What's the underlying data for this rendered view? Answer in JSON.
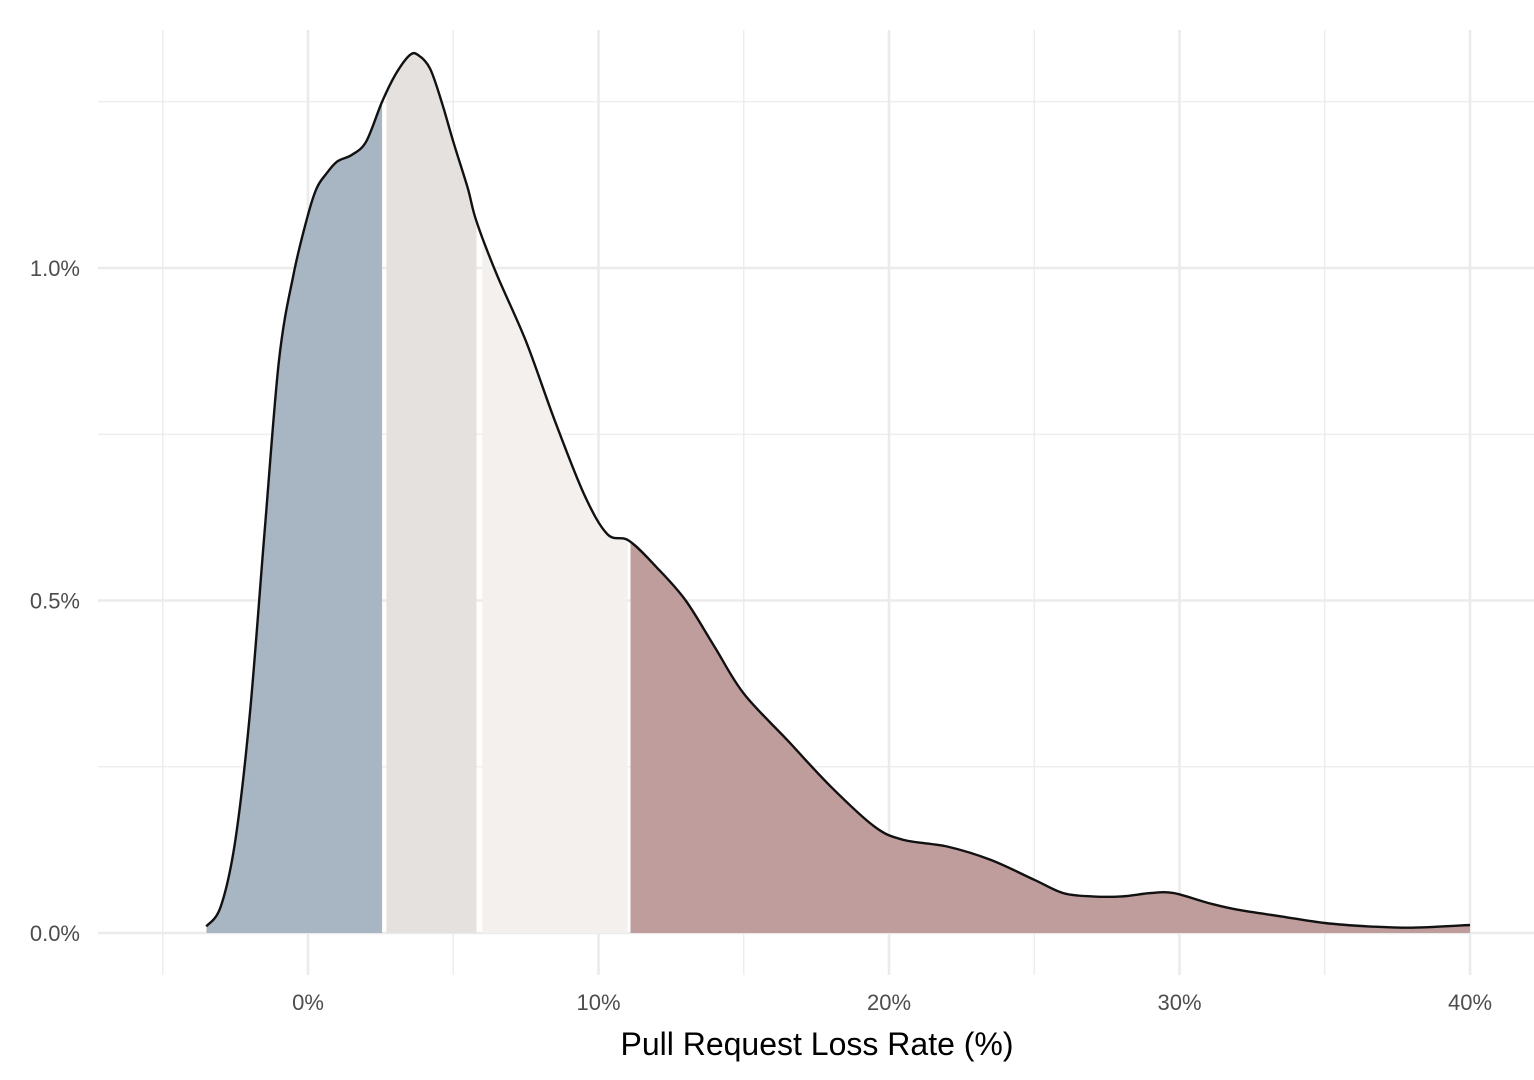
{
  "chart_data": {
    "type": "area",
    "subtype": "density",
    "title": "",
    "xlabel": "Pull Request Loss Rate (%)",
    "ylabel": "",
    "xlim": [
      -5,
      42
    ],
    "ylim": [
      -0.05,
      1.3
    ],
    "x_ticks": [
      0,
      10,
      20,
      30,
      40
    ],
    "x_tick_labels": [
      "0%",
      "10%",
      "20%",
      "30%",
      "40%"
    ],
    "x_minor_ticks": [
      -5,
      5,
      15,
      25,
      35
    ],
    "y_ticks": [
      0.0,
      0.5,
      1.0
    ],
    "y_tick_labels": [
      "0.0%",
      "0.5%",
      "1.0%"
    ],
    "y_minor_ticks": [
      0.25,
      0.75,
      1.25
    ],
    "grid": true,
    "legend": "none",
    "curve": {
      "x": [
        -3.5,
        -3.0,
        -2.5,
        -2.0,
        -1.5,
        -1.0,
        -0.5,
        0.0,
        0.3,
        0.6,
        1.0,
        1.5,
        2.0,
        2.55,
        3.0,
        3.5,
        3.8,
        4.2,
        4.6,
        5.0,
        5.5,
        5.8,
        6.5,
        7.5,
        8.5,
        9.5,
        10.3,
        11.05,
        12.0,
        13.0,
        14.0,
        15.0,
        16.5,
        18.0,
        19.5,
        20.5,
        22.0,
        23.5,
        25.0,
        26.0,
        27.0,
        28.0,
        29.0,
        29.8,
        31.0,
        32.0,
        33.5,
        35.0,
        36.5,
        38.0,
        40.0
      ],
      "density": [
        0.01,
        0.04,
        0.14,
        0.33,
        0.6,
        0.86,
        0.99,
        1.08,
        1.12,
        1.14,
        1.16,
        1.17,
        1.19,
        1.25,
        1.29,
        1.32,
        1.32,
        1.3,
        1.25,
        1.19,
        1.12,
        1.07,
        0.99,
        0.89,
        0.77,
        0.66,
        0.6,
        0.59,
        0.55,
        0.5,
        0.43,
        0.36,
        0.29,
        0.22,
        0.16,
        0.14,
        0.13,
        0.11,
        0.08,
        0.06,
        0.055,
        0.055,
        0.06,
        0.06,
        0.045,
        0.035,
        0.025,
        0.015,
        0.01,
        0.008,
        0.012
      ]
    },
    "segments": [
      {
        "name": "segment-1",
        "from": -3.5,
        "to": 2.55,
        "color": "#a8b6c3"
      },
      {
        "name": "segment-2",
        "from": 2.7,
        "to": 5.8,
        "color": "#e5e1de"
      },
      {
        "name": "segment-3",
        "from": 6.0,
        "to": 11.0,
        "color": "#f4f0ed"
      },
      {
        "name": "segment-4",
        "from": 11.1,
        "to": 40.0,
        "color": "#bf9d9c"
      }
    ],
    "colors": {
      "outline": "#1a1a1a",
      "grid": "#ebebeb",
      "background": "#ffffff"
    }
  }
}
